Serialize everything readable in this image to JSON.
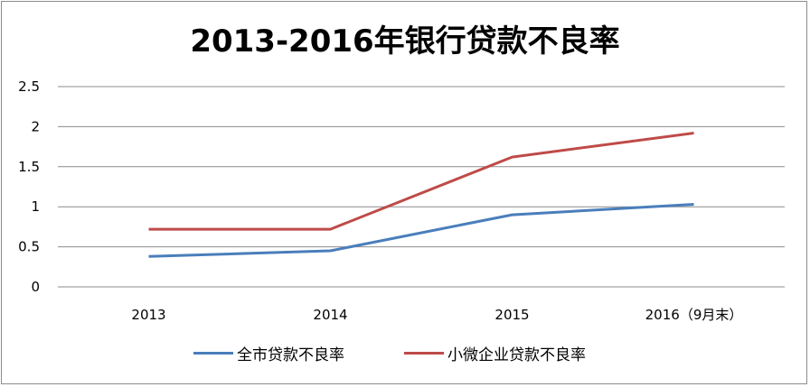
{
  "chart_data": {
    "type": "line",
    "title": "2013-2016年银行贷款不良率",
    "categories": [
      "2013",
      "2014",
      "2015",
      "2016（9月末）"
    ],
    "series": [
      {
        "name": "全市贷款不良率",
        "values": [
          0.38,
          0.45,
          0.9,
          1.03
        ],
        "color": "#4a7ebb"
      },
      {
        "name": "小微企业贷款不良率",
        "values": [
          0.72,
          0.72,
          1.62,
          1.92
        ],
        "color": "#be4b48"
      }
    ],
    "y_ticks": [
      "0",
      "0.5",
      "1",
      "1.5",
      "2",
      "2.5"
    ],
    "ylim": [
      0,
      2.5
    ],
    "grid": true,
    "legend_position": "bottom",
    "gridline_color": "#8c8c8c"
  }
}
